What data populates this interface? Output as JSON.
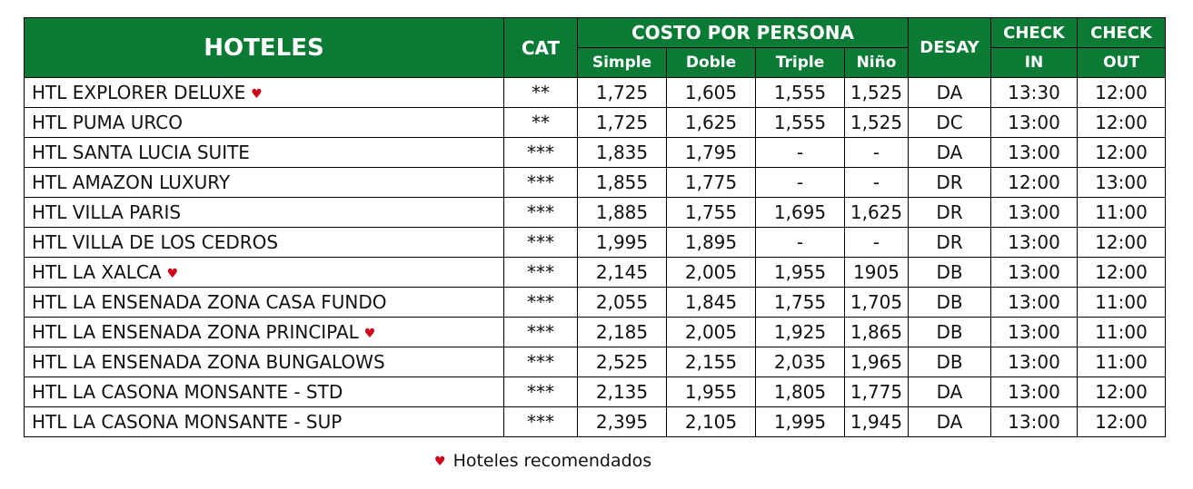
{
  "header": {
    "hotels": "HOTELES",
    "cat": "CAT",
    "cost_per_person": "COSTO POR PERSONA",
    "desay": "DESAY",
    "check_in_top": "CHECK",
    "check_in_bottom": "IN",
    "check_out_top": "CHECK",
    "check_out_bottom": "OUT",
    "simple": "Simple",
    "doble": "Doble",
    "triple": "Triple",
    "nino": "Niño"
  },
  "rows": [
    {
      "name": "HTL EXPLORER DELUXE",
      "recommended": true,
      "cat": "**",
      "simple": "1,725",
      "doble": "1,605",
      "triple": "1,555",
      "nino": "1,525",
      "desay": "DA",
      "check_in": "13:30",
      "check_out": "12:00"
    },
    {
      "name": "HTL PUMA URCO",
      "recommended": false,
      "cat": "**",
      "simple": "1,725",
      "doble": "1,625",
      "triple": "1,555",
      "nino": "1,525",
      "desay": "DC",
      "check_in": "13:00",
      "check_out": "12:00"
    },
    {
      "name": "HTL SANTA LUCIA SUITE",
      "recommended": false,
      "cat": "***",
      "simple": "1,835",
      "doble": "1,795",
      "triple": "-",
      "nino": "-",
      "desay": "DA",
      "check_in": "13:00",
      "check_out": "12:00"
    },
    {
      "name": "HTL AMAZON LUXURY",
      "recommended": false,
      "cat": "***",
      "simple": "1,855",
      "doble": "1,775",
      "triple": "-",
      "nino": "-",
      "desay": "DR",
      "check_in": "12:00",
      "check_out": "13:00"
    },
    {
      "name": "HTL VILLA PARIS",
      "recommended": false,
      "cat": "***",
      "simple": "1,885",
      "doble": "1,755",
      "triple": "1,695",
      "nino": "1,625",
      "desay": "DR",
      "check_in": "13:00",
      "check_out": "11:00"
    },
    {
      "name": "HTL VILLA DE LOS CEDROS",
      "recommended": false,
      "cat": "***",
      "simple": "1,995",
      "doble": "1,895",
      "triple": "-",
      "nino": "-",
      "desay": "DR",
      "check_in": "13:00",
      "check_out": "12:00"
    },
    {
      "name": "HTL LA XALCA",
      "recommended": true,
      "cat": "***",
      "simple": "2,145",
      "doble": "2,005",
      "triple": "1,955",
      "nino": "1905",
      "desay": "DB",
      "check_in": "13:00",
      "check_out": "12:00"
    },
    {
      "name": "HTL LA ENSENADA ZONA CASA FUNDO",
      "recommended": false,
      "cat": "***",
      "simple": "2,055",
      "doble": "1,845",
      "triple": "1,755",
      "nino": "1,705",
      "desay": "DB",
      "check_in": "13:00",
      "check_out": "11:00"
    },
    {
      "name": "HTL LA ENSENADA ZONA PRINCIPAL",
      "recommended": true,
      "cat": "***",
      "simple": "2,185",
      "doble": "2,005",
      "triple": "1,925",
      "nino": "1,865",
      "desay": "DB",
      "check_in": "13:00",
      "check_out": "11:00"
    },
    {
      "name": "HTL LA ENSENADA ZONA BUNGALOWS",
      "recommended": false,
      "cat": "***",
      "simple": "2,525",
      "doble": "2,155",
      "triple": "2,035",
      "nino": "1,965",
      "desay": "DB",
      "check_in": "13:00",
      "check_out": "11:00"
    },
    {
      "name": "HTL LA CASONA MONSANTE - STD",
      "recommended": false,
      "cat": "***",
      "simple": "2,135",
      "doble": "1,955",
      "triple": "1,805",
      "nino": "1,775",
      "desay": "DA",
      "check_in": "13:00",
      "check_out": "12:00"
    },
    {
      "name": "HTL LA CASONA MONSANTE - SUP",
      "recommended": false,
      "cat": "***",
      "simple": "2,395",
      "doble": "2,105",
      "triple": "1,995",
      "nino": "1,945",
      "desay": "DA",
      "check_in": "13:00",
      "check_out": "12:00"
    }
  ],
  "legend": {
    "heart_glyph": "♥",
    "text": "Hoteles recomendados"
  },
  "colors": {
    "header_green": "#0b7a35",
    "heart_red": "#d0021b"
  }
}
